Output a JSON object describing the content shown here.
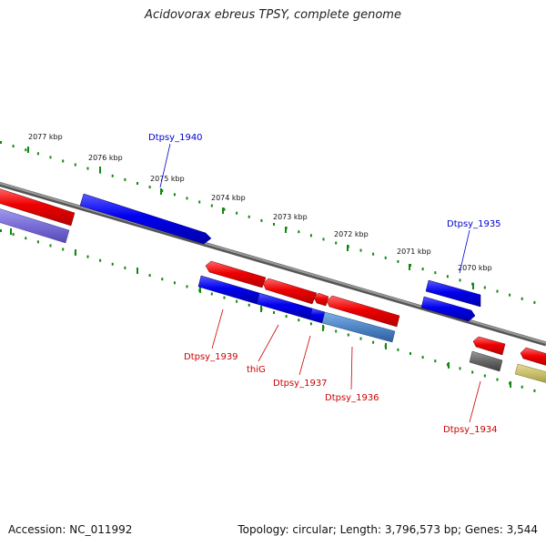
{
  "title": "Acidovorax ebreus TPSY, complete genome",
  "footer": {
    "accession": "Accession: NC_011992",
    "summary": "Topology: circular; Length: 3,796,573 bp; Genes: 3,544"
  },
  "ticks": [
    "2077 kbp",
    "2076 kbp",
    "2075 kbp",
    "2074 kbp",
    "2073 kbp",
    "2072 kbp",
    "2071 kbp",
    "2070 kbp"
  ],
  "gene_labels": {
    "g1940": "Dtpsy_1940",
    "g1935": "Dtpsy_1935",
    "g1939": "Dtpsy_1939",
    "thiG": "thiG",
    "g1937": "Dtpsy_1937",
    "g1936": "Dtpsy_1936",
    "g1934": "Dtpsy_1934"
  },
  "colors": {
    "forward_gene": "#0000ee",
    "reverse_gene": "#ee0000",
    "backbone": "#808080",
    "tick_marks": "#118811",
    "label_forward": "#0000cc",
    "label_reverse": "#cc0000",
    "cds_blue_light": "#7a6fd6",
    "cds_steel": "#4f86c6",
    "cds_gray": "#666666",
    "cds_khaki": "#c8bd6a"
  }
}
